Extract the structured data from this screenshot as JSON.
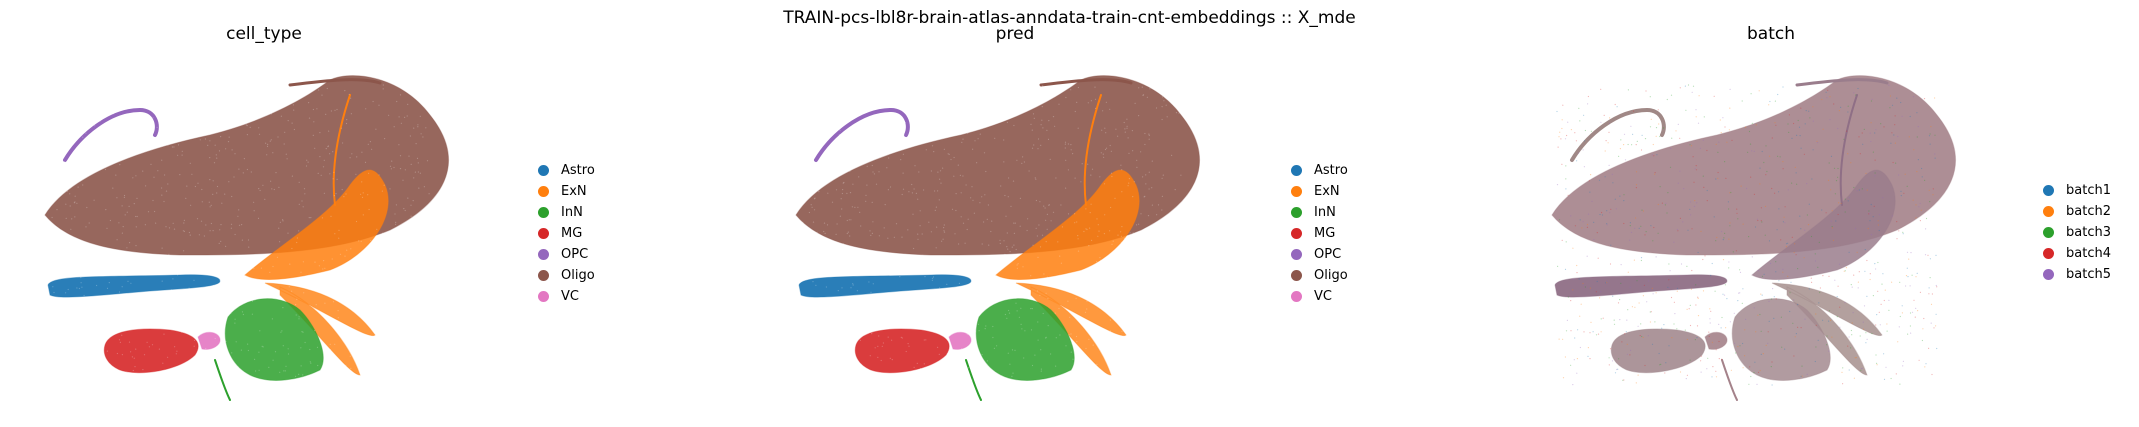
{
  "figure": {
    "suptitle": "TRAIN-pcs-lbl8r-brain-atlas-anndata-train-cnt-embeddings :: X_mde"
  },
  "chart_data": [
    {
      "type": "scatter",
      "title": "cell_type",
      "legend_placement": "right",
      "grid": false,
      "axes_visible": false,
      "legend": [
        {
          "label": "Astro",
          "color": "#1f77b4"
        },
        {
          "label": "ExN",
          "color": "#ff7f0e"
        },
        {
          "label": "InN",
          "color": "#2ca02c"
        },
        {
          "label": "MG",
          "color": "#d62728"
        },
        {
          "label": "OPC",
          "color": "#9467bd"
        },
        {
          "label": "Oligo",
          "color": "#8c564b"
        },
        {
          "label": "VC",
          "color": "#e377c2"
        }
      ]
    },
    {
      "type": "scatter",
      "title": "pred",
      "legend_placement": "right",
      "grid": false,
      "axes_visible": false,
      "legend": [
        {
          "label": "Astro",
          "color": "#1f77b4"
        },
        {
          "label": "ExN",
          "color": "#ff7f0e"
        },
        {
          "label": "InN",
          "color": "#2ca02c"
        },
        {
          "label": "MG",
          "color": "#d62728"
        },
        {
          "label": "OPC",
          "color": "#9467bd"
        },
        {
          "label": "Oligo",
          "color": "#8c564b"
        },
        {
          "label": "VC",
          "color": "#e377c2"
        }
      ]
    },
    {
      "type": "scatter",
      "title": "batch",
      "legend_placement": "right",
      "grid": false,
      "axes_visible": false,
      "legend": [
        {
          "label": "batch1",
          "color": "#1f77b4"
        },
        {
          "label": "batch2",
          "color": "#ff7f0e"
        },
        {
          "label": "batch3",
          "color": "#2ca02c"
        },
        {
          "label": "batch4",
          "color": "#d62728"
        },
        {
          "label": "batch5",
          "color": "#9467bd"
        }
      ]
    }
  ]
}
